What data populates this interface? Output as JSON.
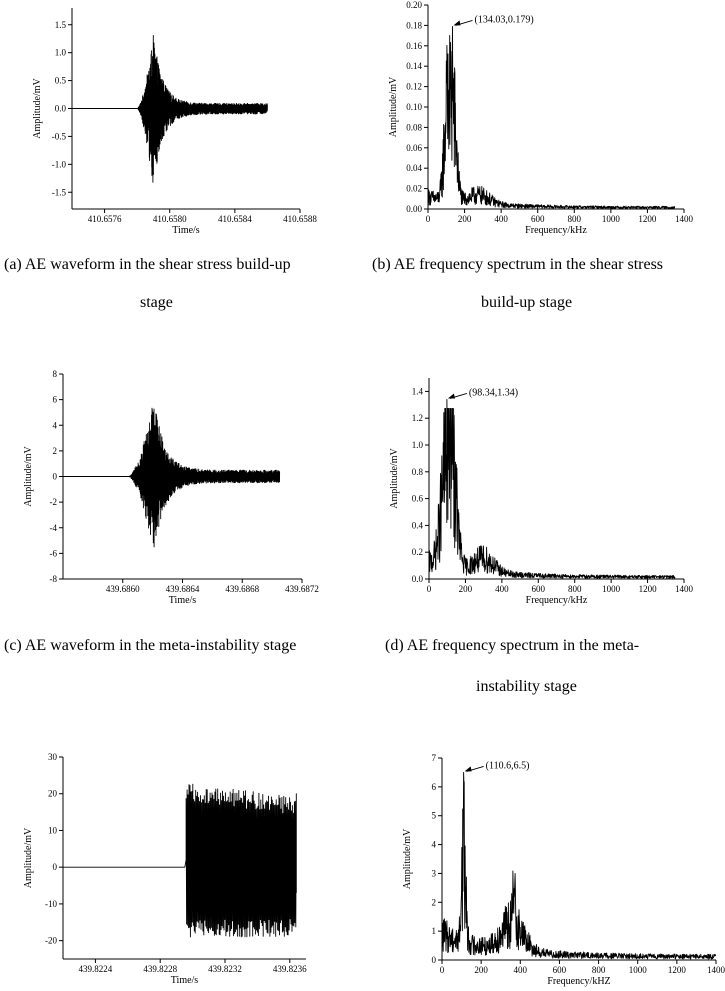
{
  "captions": {
    "a_line1": "(a) AE waveform in the shear stress build-up",
    "a_line2": "stage",
    "b_line1": "(b) AE frequency spectrum in the shear stress",
    "b_line2": "build-up stage",
    "c_line1": "(c) AE waveform in the meta-instability stage",
    "d_line1": "(d) AE frequency spectrum in the meta-",
    "d_line2": "instability stage"
  },
  "chart_data": [
    {
      "id": "a",
      "type": "line",
      "xlabel": "Time/s",
      "ylabel": "Amplitude/mV",
      "xlim": [
        410.6574,
        410.6588
      ],
      "ylim": [
        -1.8,
        1.8
      ],
      "xticks": [
        410.6576,
        410.658,
        410.6584,
        410.6588
      ],
      "xtick_labels": [
        "410.6576",
        "410.6580",
        "410.6584",
        "410.6588"
      ],
      "yticks": [
        -1.5,
        -1.0,
        -0.5,
        0.0,
        0.5,
        1.0,
        1.5
      ],
      "ytick_labels": [
        "-1.5",
        "-1.0",
        "-0.5",
        "0.0",
        "0.5",
        "1.0",
        "1.5"
      ],
      "signal": {
        "kind": "waveform",
        "onset": 410.6578,
        "end": 410.6586,
        "peak_time": 410.6579,
        "peak": 1.33,
        "trough": -1.45,
        "tail": 0.09
      }
    },
    {
      "id": "b",
      "type": "line",
      "xlabel": "Frequency/kHz",
      "ylabel": "Amplitude/mV",
      "xlim": [
        0,
        1400
      ],
      "ylim": [
        0,
        0.2
      ],
      "xticks": [
        0,
        200,
        400,
        600,
        800,
        1000,
        1200,
        1400
      ],
      "xtick_labels": [
        "0",
        "200",
        "400",
        "600",
        "800",
        "1000",
        "1200",
        "1400"
      ],
      "yticks": [
        0,
        0.02,
        0.04,
        0.06,
        0.08,
        0.1,
        0.12,
        0.14,
        0.16,
        0.18,
        0.2
      ],
      "ytick_labels": [
        "0.00",
        "0.02",
        "0.04",
        "0.06",
        "0.08",
        "0.10",
        "0.12",
        "0.14",
        "0.16",
        "0.18",
        "0.20"
      ],
      "peak": {
        "x": 134.03,
        "y": 0.179,
        "label": "(134.03,0.179)"
      },
      "signal": {
        "kind": "spectrum",
        "fmax": 1350,
        "sigma": 28,
        "second": [
          100,
          0.145
        ],
        "floor": 0.012,
        "hump": [
          280,
          0.01
        ]
      }
    },
    {
      "id": "c",
      "type": "line",
      "xlabel": "Time/s",
      "ylabel": "Amplitude/mV",
      "xlim": [
        439.6856,
        439.6872
      ],
      "ylim": [
        -8,
        8
      ],
      "xticks": [
        439.686,
        439.6864,
        439.6868,
        439.6872
      ],
      "xtick_labels": [
        "439.6860",
        "439.6864",
        "439.6868",
        "439.6872"
      ],
      "yticks": [
        -8,
        -6,
        -4,
        -2,
        0,
        2,
        4,
        6,
        8
      ],
      "ytick_labels": [
        "-8",
        "-6",
        "-4",
        "-2",
        "0",
        "2",
        "4",
        "6",
        "8"
      ],
      "signal": {
        "kind": "waveform",
        "onset": 439.68604,
        "end": 439.68705,
        "peak_time": 439.68621,
        "peak": 6.2,
        "trough": -6.0,
        "tail": 0.5
      }
    },
    {
      "id": "d",
      "type": "line",
      "xlabel": "Frequency/kHz",
      "ylabel": "Amplitude/mV",
      "xlim": [
        0,
        1400
      ],
      "ylim": [
        0,
        1.5
      ],
      "xticks": [
        0,
        200,
        400,
        600,
        800,
        1000,
        1200,
        1400
      ],
      "xtick_labels": [
        "0",
        "200",
        "400",
        "600",
        "800",
        "1000",
        "1200",
        "1400"
      ],
      "yticks": [
        0,
        0.2,
        0.4,
        0.6,
        0.8,
        1.0,
        1.2,
        1.4
      ],
      "ytick_labels": [
        "0.0",
        "0.2",
        "0.4",
        "0.6",
        "0.8",
        "1.0",
        "1.2",
        "1.4"
      ],
      "peak": {
        "x": 98.34,
        "y": 1.34,
        "label": "(98.34,1.34)"
      },
      "signal": {
        "kind": "spectrum",
        "fmax": 1350,
        "sigma": 45,
        "second": [
          130,
          1.0
        ],
        "floor": 0.12,
        "hump": [
          300,
          0.12
        ]
      }
    },
    {
      "id": "e",
      "type": "line",
      "xlabel": "Time/s",
      "ylabel": "Amplitude/mV",
      "xlim": [
        439.8222,
        439.8237
      ],
      "ylim": [
        -25,
        30
      ],
      "xticks": [
        439.8224,
        439.8228,
        439.8232,
        439.8236
      ],
      "xtick_labels": [
        "439.8224",
        "439.8228",
        "439.8232",
        "439.8236"
      ],
      "yticks": [
        -20,
        -10,
        0,
        10,
        20,
        30
      ],
      "ytick_labels": [
        "-20",
        "-10",
        "0",
        "10",
        "20",
        "30"
      ],
      "signal": {
        "kind": "saturated",
        "onset": 439.82296,
        "end": 439.82364,
        "high": 23,
        "low": -19
      }
    },
    {
      "id": "f",
      "type": "line",
      "xlabel": "Frequency/kHZ",
      "ylabel": "Amplitude/mV",
      "xlim": [
        0,
        1400
      ],
      "ylim": [
        0,
        7
      ],
      "xticks": [
        0,
        200,
        400,
        600,
        800,
        1000,
        1200,
        1400
      ],
      "xtick_labels": [
        "0",
        "200",
        "400",
        "600",
        "800",
        "1000",
        "1200",
        "1400"
      ],
      "yticks": [
        0,
        1,
        2,
        3,
        4,
        5,
        6,
        7
      ],
      "ytick_labels": [
        "0",
        "1",
        "2",
        "3",
        "4",
        "5",
        "6",
        "7"
      ],
      "peak": {
        "x": 110.6,
        "y": 6.5,
        "label": "(110.6,6.5)"
      },
      "signal": {
        "kind": "spectrum",
        "fmax": 1400,
        "sigma": 14,
        "second": [
          370,
          2.2
        ],
        "floor": 0.9,
        "hump": [
          360,
          1.1
        ]
      }
    }
  ]
}
